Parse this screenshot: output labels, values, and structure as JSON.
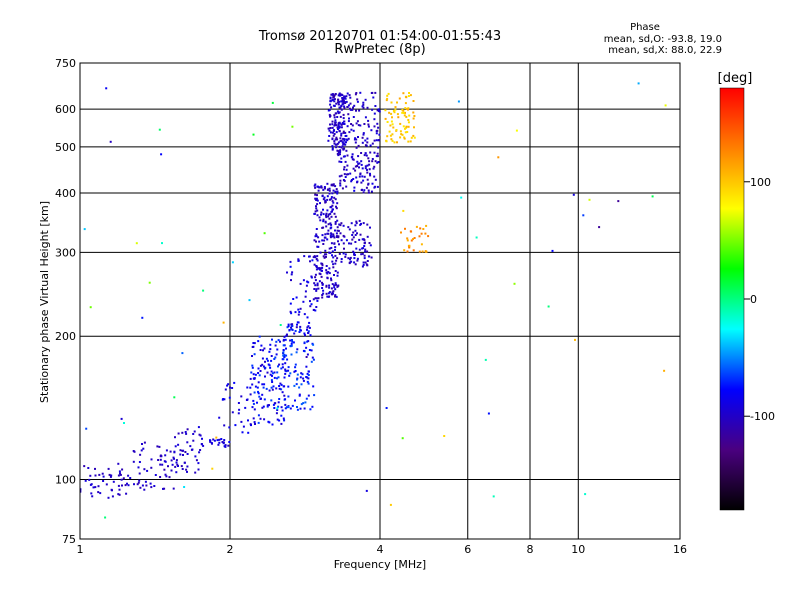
{
  "chart_data": {
    "type": "scatter",
    "title": "Tromsø 20120701 01:54:00-01:55:43",
    "subtitle": "RwPretec (8p)",
    "xlabel": "Frequency [MHz]",
    "ylabel": "Stationary phase Virtual Height [km]",
    "x_scale": "log",
    "y_scale": "log",
    "xlim": [
      1,
      16
    ],
    "ylim": [
      75,
      750
    ],
    "x_ticks": [
      1,
      2,
      4,
      6,
      8,
      10,
      16
    ],
    "x_tick_labels": [
      "1",
      "2",
      "4",
      "6",
      "8",
      "10",
      "16"
    ],
    "y_ticks": [
      75,
      100,
      200,
      300,
      400,
      500,
      600,
      750
    ],
    "y_tick_labels": [
      "75",
      "100",
      "200",
      "300",
      "400",
      "500",
      "600",
      "750"
    ],
    "grid": true,
    "stats": {
      "heading": "Phase",
      "line_o": "mean, sd,O: -93.8, 19.0",
      "line_x": "mean, sd,X:  88.0, 22.9"
    },
    "colorbar": {
      "label": "[deg]",
      "range": [
        -180,
        180
      ],
      "ticks": [
        100,
        0,
        -100
      ],
      "tick_labels": [
        "100",
        "0",
        "-100"
      ],
      "colors": [
        "#000000",
        "#4a0080",
        "#0000ff",
        "#00ffff",
        "#00ff00",
        "#ffff00",
        "#ff8000",
        "#ff0000"
      ]
    },
    "clusters": [
      {
        "fmin": 1.0,
        "fmax": 1.25,
        "hmin": 90,
        "hmax": 108,
        "n": 50,
        "phase": -100,
        "spread": 10
      },
      {
        "fmin": 1.25,
        "fmax": 1.55,
        "hmin": 95,
        "hmax": 120,
        "n": 60,
        "phase": -100,
        "spread": 10
      },
      {
        "fmin": 1.55,
        "fmax": 1.75,
        "hmin": 103,
        "hmax": 130,
        "n": 45,
        "phase": -98,
        "spread": 10
      },
      {
        "fmin": 1.75,
        "fmax": 2.0,
        "hmin": 117,
        "hmax": 122,
        "n": 25,
        "phase": -90,
        "spread": 12
      },
      {
        "fmin": 1.9,
        "fmax": 2.2,
        "hmin": 125,
        "hmax": 160,
        "n": 30,
        "phase": -90,
        "spread": 12
      },
      {
        "fmin": 2.2,
        "fmax": 2.6,
        "hmin": 130,
        "hmax": 200,
        "n": 150,
        "phase": -80,
        "spread": 18
      },
      {
        "fmin": 2.55,
        "fmax": 2.95,
        "hmin": 140,
        "hmax": 215,
        "n": 120,
        "phase": -75,
        "spread": 18
      },
      {
        "fmin": 2.6,
        "fmax": 3.0,
        "hmin": 200,
        "hmax": 300,
        "n": 60,
        "phase": -90,
        "spread": 15
      },
      {
        "fmin": 2.95,
        "fmax": 3.3,
        "hmin": 240,
        "hmax": 420,
        "n": 260,
        "phase": -100,
        "spread": 12
      },
      {
        "fmin": 3.15,
        "fmax": 3.4,
        "hmin": 480,
        "hmax": 650,
        "n": 150,
        "phase": -100,
        "spread": 12
      },
      {
        "fmin": 3.3,
        "fmax": 3.85,
        "hmin": 280,
        "hmax": 350,
        "n": 90,
        "phase": -100,
        "spread": 12
      },
      {
        "fmin": 3.3,
        "fmax": 4.0,
        "hmin": 400,
        "hmax": 650,
        "n": 220,
        "phase": -100,
        "spread": 12
      },
      {
        "fmin": 4.1,
        "fmax": 4.7,
        "hmin": 510,
        "hmax": 650,
        "n": 80,
        "phase": 100,
        "spread": 15
      },
      {
        "fmin": 4.4,
        "fmax": 5.0,
        "hmin": 300,
        "hmax": 345,
        "n": 30,
        "phase": 120,
        "spread": 15
      },
      {
        "fmin": 1.0,
        "fmax": 15.0,
        "hmin": 80,
        "hmax": 700,
        "n": 60,
        "phase": 0,
        "spread": 120
      }
    ]
  }
}
